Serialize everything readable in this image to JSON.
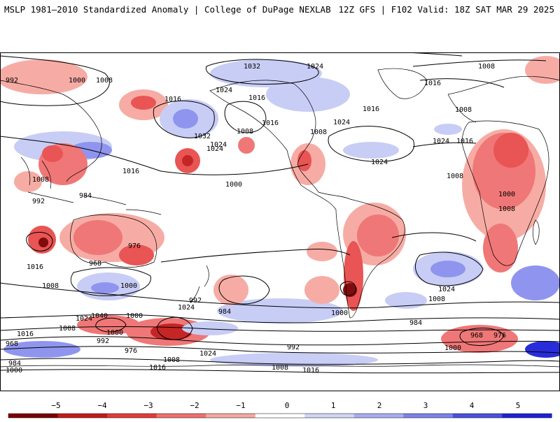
{
  "header": {
    "title_left": "MSLP 1981–2010 Standardized Anomaly | College of DuPage NEXLAB",
    "title_right": "12Z GFS | F102 Valid: 18Z SAT MAR 29 2025"
  },
  "map": {
    "contour_unit": "hPa",
    "isobar_labels": [
      "1016",
      "1032",
      "1024",
      "1008",
      "1000",
      "992",
      "1016",
      "1024",
      "1008",
      "1032",
      "1024",
      "1016",
      "1008",
      "1024",
      "1016",
      "1008",
      "1016",
      "1024",
      "1008",
      "1024",
      "1016",
      "1008",
      "1000",
      "1008",
      "1016",
      "1024",
      "1016",
      "1008",
      "1000",
      "992",
      "984",
      "976",
      "968",
      "1016",
      "1008",
      "1000",
      "992",
      "984",
      "1024",
      "1040",
      "1024",
      "1000",
      "1008",
      "1016",
      "1000",
      "992",
      "976",
      "968",
      "984",
      "1000",
      "1008",
      "1016",
      "1024",
      "992",
      "1000",
      "1008",
      "1016",
      "1024",
      "984",
      "1008",
      "968",
      "976",
      "1000",
      "984",
      "992"
    ],
    "colors": {
      "strong_negative": "#8b0000",
      "negative": "#e84b4b",
      "weak_negative": "#f6a8a0",
      "neutral": "#ffffff",
      "weak_positive": "#c6cbf6",
      "positive": "#8a90ee",
      "strong_positive": "#1d22d8",
      "coastline": "#000000",
      "isobar": "#000000"
    }
  },
  "colorbar": {
    "ticks": [
      "−5",
      "−4",
      "−3",
      "−2",
      "−1",
      "0",
      "1",
      "2",
      "3",
      "4",
      "5"
    ],
    "colors": [
      "#7a0000",
      "#c41a1a",
      "#e23b3b",
      "#f07070",
      "#f6a8a0",
      "#ffffff",
      "#d2d5f8",
      "#a8adf2",
      "#7d82ea",
      "#4b50de",
      "#1d22d8"
    ]
  }
}
